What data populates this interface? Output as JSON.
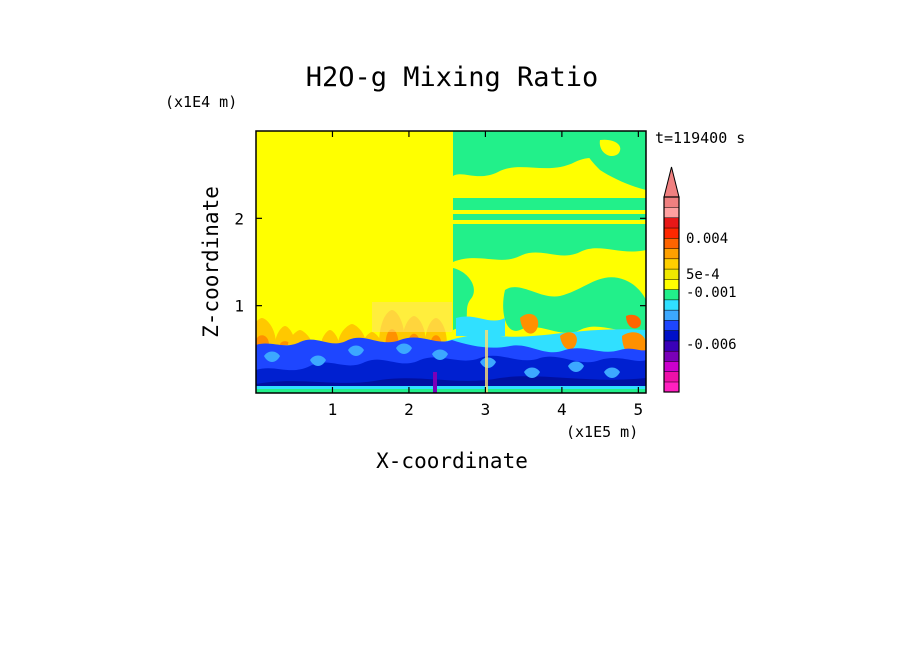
{
  "chart_data": {
    "type": "heatmap",
    "title": "H2O-g Mixing Ratio",
    "xlabel": "X-coordinate",
    "ylabel": "Z-coordinate",
    "x_unit": "(x1E5 m)",
    "y_unit": "(x1E4 m)",
    "time_label": "t=119400 s",
    "xlim": [
      0,
      5.1
    ],
    "ylim": [
      0,
      3.0
    ],
    "x_ticks": [
      1,
      2,
      3,
      4,
      5
    ],
    "y_ticks": [
      1,
      2
    ],
    "x_tick_labels": [
      "1",
      "2",
      "3",
      "4",
      "5"
    ],
    "y_tick_labels": [
      "1",
      "2"
    ],
    "colorbar": {
      "colors_bottom_to_top": [
        "#ff20c0",
        "#ee10a8",
        "#cc00cc",
        "#7a00b8",
        "#3a00b8",
        "#0010c8",
        "#1e46ff",
        "#3ca8ff",
        "#30e0ff",
        "#22f08a",
        "#ffff00",
        "#f0e800",
        "#ffd000",
        "#ffa000",
        "#ff6400",
        "#ff2800",
        "#e81818",
        "#ffa0a0",
        "#f08080"
      ],
      "labels": [
        "0.004",
        "5e-4",
        "-0.001",
        "-0.006"
      ],
      "label_values": [
        0.004,
        0.0005,
        -0.001,
        -0.006
      ],
      "extend": "max"
    },
    "field_summary": {
      "upper_left_level": "yellow",
      "upper_right_pattern": "yellow with green bands",
      "lower_band_levels": "orange, cyan, blue, dark blue",
      "boundary_x": 2.57
    }
  }
}
